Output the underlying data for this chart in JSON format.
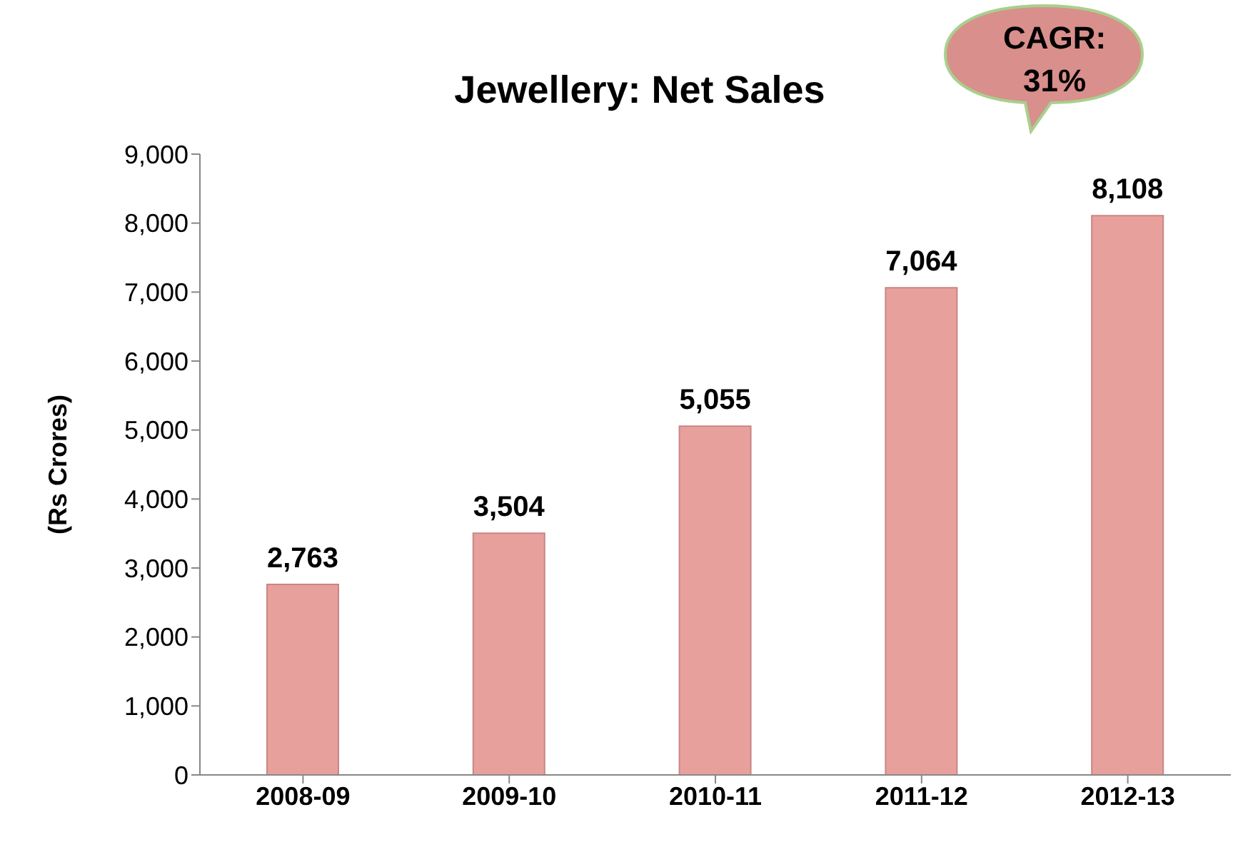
{
  "chart_data": {
    "type": "bar",
    "title": "Jewellery: Net Sales",
    "ylabel": "(Rs Crores)",
    "categories": [
      "2008-09",
      "2009-10",
      "2010-11",
      "2011-12",
      "2012-13"
    ],
    "values": [
      2763,
      3504,
      5055,
      7064,
      8108
    ],
    "value_labels": [
      "2,763",
      "3,504",
      "5,055",
      "7,064",
      "8,108"
    ],
    "color": "#e8a09d",
    "ylim": [
      0,
      9000
    ],
    "yticks": [
      {
        "value": 0,
        "label": "0"
      },
      {
        "value": 1000,
        "label": "1,000"
      },
      {
        "value": 2000,
        "label": "2,000"
      },
      {
        "value": 3000,
        "label": "3,000"
      },
      {
        "value": 4000,
        "label": "4,000"
      },
      {
        "value": 5000,
        "label": "5,000"
      },
      {
        "value": 6000,
        "label": "6,000"
      },
      {
        "value": 7000,
        "label": "7,000"
      },
      {
        "value": 8000,
        "label": "8,000"
      },
      {
        "value": 9000,
        "label": "9,000"
      }
    ],
    "annotations": [
      "CAGR: 31%"
    ],
    "grid": false,
    "legend": false
  }
}
